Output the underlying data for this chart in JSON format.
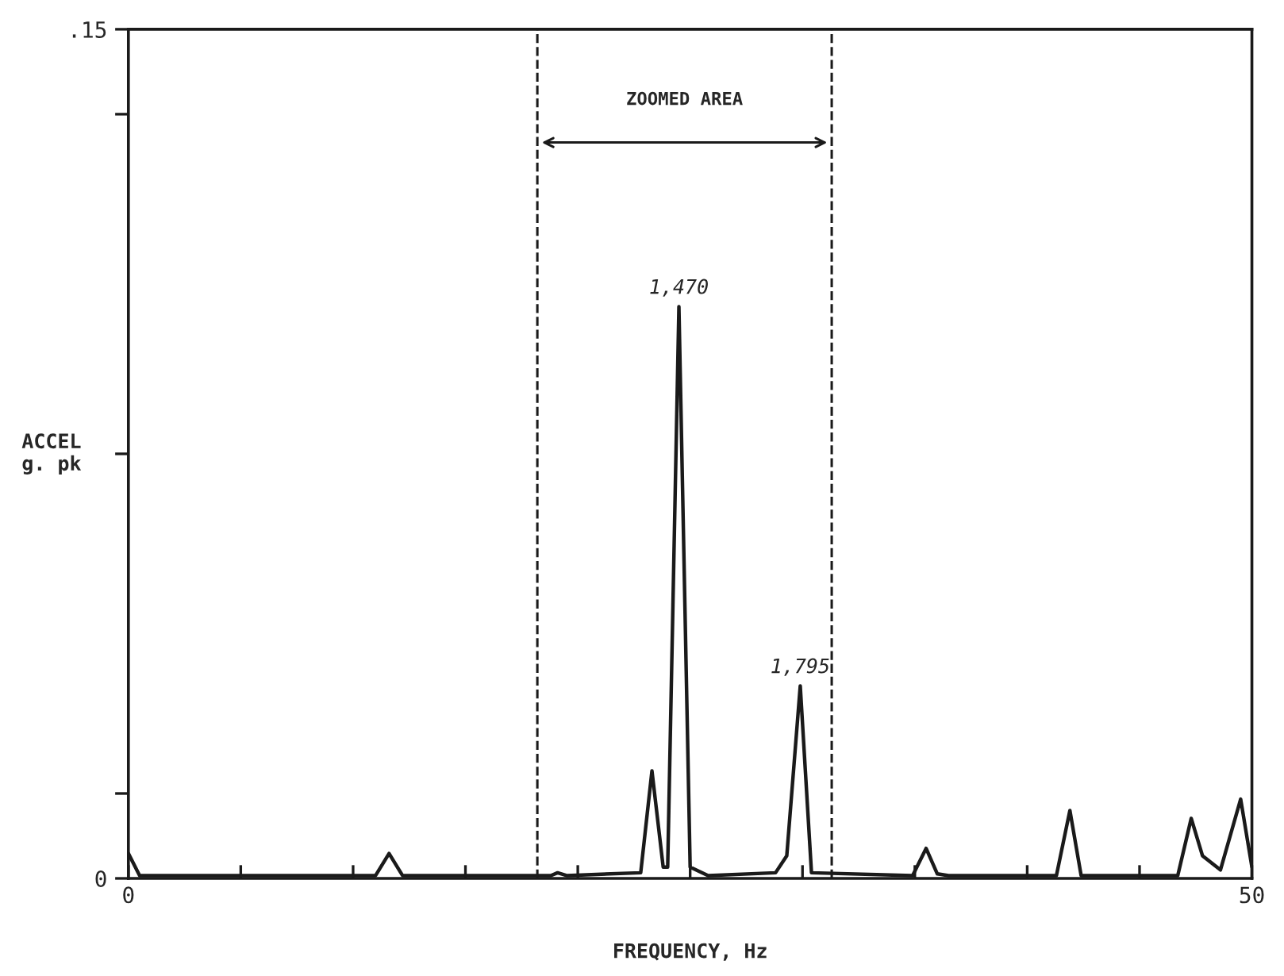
{
  "chart_data": {
    "type": "line",
    "xlabel": "FREQUENCY, Hz",
    "ylabel": "ACCEL\ng. pk",
    "x": [
      0,
      0.5,
      11.0,
      11.6,
      12.2,
      18.8,
      19.1,
      19.5,
      22.8,
      23.3,
      23.8,
      24.0,
      24.5,
      25.0,
      25.8,
      28.8,
      29.3,
      29.9,
      30.4,
      34.9,
      35.5,
      36.0,
      36.5,
      41.3,
      41.9,
      42.4,
      46.7,
      47.3,
      47.8,
      48.6,
      49.5,
      50
    ],
    "series": [
      {
        "color": "#1a1a1a",
        "values": [
          0.0044,
          0.0005,
          0.0005,
          0.0044,
          0.0005,
          0.0005,
          0.001,
          0.0005,
          0.001,
          0.019,
          0.002,
          0.002,
          0.101,
          0.002,
          0.0005,
          0.001,
          0.004,
          0.034,
          0.001,
          0.0005,
          0.0053,
          0.0008,
          0.0005,
          0.0005,
          0.012,
          0.0005,
          0.0005,
          0.0106,
          0.004,
          0.0015,
          0.014,
          0.002
        ]
      }
    ],
    "xlim": [
      0,
      50
    ],
    "ylim": [
      0,
      0.15
    ],
    "xticks": [
      0,
      {
        "value": 5,
        "label": null
      },
      {
        "value": 10,
        "label": null
      },
      {
        "value": 15,
        "label": null
      },
      {
        "value": 20,
        "label": null
      },
      {
        "value": 25,
        "label": null
      },
      {
        "value": 30,
        "label": null
      },
      {
        "value": 35,
        "label": null
      },
      {
        "value": 40,
        "label": null
      },
      {
        "value": 45,
        "label": null
      },
      50
    ],
    "yticks": [
      0,
      {
        "value": 0.015,
        "label": null
      },
      {
        "value": 0.075,
        "label": null
      },
      {
        "value": 0.135,
        "label": null
      },
      {
        "value": 0.15,
        "label": ".15"
      }
    ],
    "ref_lines": [
      {
        "axis": "x",
        "value": 18.2,
        "line_style": "dashed",
        "color": "#1a1a1a"
      },
      {
        "axis": "x",
        "value": 31.3,
        "line_style": "dashed",
        "color": "#1a1a1a"
      }
    ],
    "annotations": [
      {
        "text": "1,470",
        "x": 24.5,
        "y": 0.101
      },
      {
        "text": "1,795",
        "x": 29.9,
        "y": 0.034
      },
      "ZOOMED AREA"
    ],
    "grid": false,
    "legend": false,
    "marker": "none",
    "line_style": "solid"
  }
}
